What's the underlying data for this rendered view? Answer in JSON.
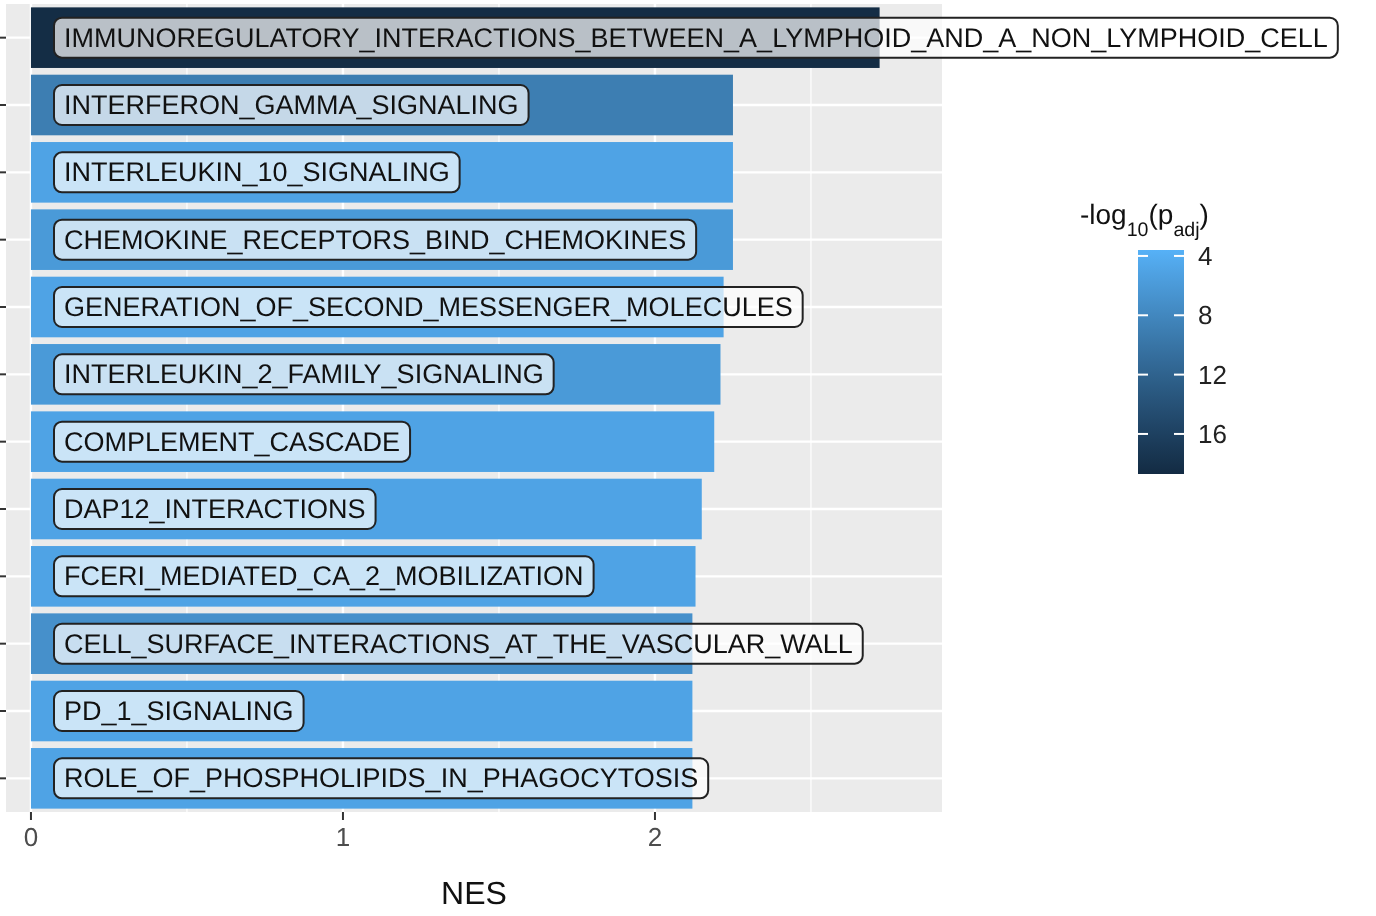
{
  "chart_data": {
    "type": "bar",
    "orientation": "horizontal",
    "xlabel": "NES",
    "clabel": "-log$_{10}$(p$_{adj}$)",
    "categories": [
      "IMMUNOREGULATORY_INTERACTIONS_BETWEEN_A_LYMPHOID_AND_A_NON_LYMPHOID_CELL",
      "INTERFERON_GAMMA_SIGNALING",
      "INTERLEUKIN_10_SIGNALING",
      "CHEMOKINE_RECEPTORS_BIND_CHEMOKINES",
      "GENERATION_OF_SECOND_MESSENGER_MOLECULES",
      "INTERLEUKIN_2_FAMILY_SIGNALING",
      "COMPLEMENT_CASCADE",
      "DAP12_INTERACTIONS",
      "FCERI_MEDIATED_CA_2_MOBILIZATION",
      "CELL_SURFACE_INTERACTIONS_AT_THE_VASCULAR_WALL",
      "PD_1_SIGNALING",
      "ROLE_OF_PHOSPHOLIPIDS_IN_PHAGOCYTOSIS"
    ],
    "values": [
      2.72,
      2.25,
      2.25,
      2.25,
      2.22,
      2.21,
      2.19,
      2.15,
      2.13,
      2.12,
      2.12,
      2.12
    ],
    "cvalues": [
      18.5,
      9,
      5,
      6,
      5,
      6,
      5,
      5,
      5,
      7,
      5,
      5
    ],
    "clim": [
      3.6,
      18.7
    ],
    "cticks": [
      4,
      8,
      12,
      16
    ],
    "xlim": [
      -0.08,
      2.92
    ],
    "xticks": [
      0,
      1,
      2
    ],
    "grid": true,
    "tick_labels": "x"
  }
}
